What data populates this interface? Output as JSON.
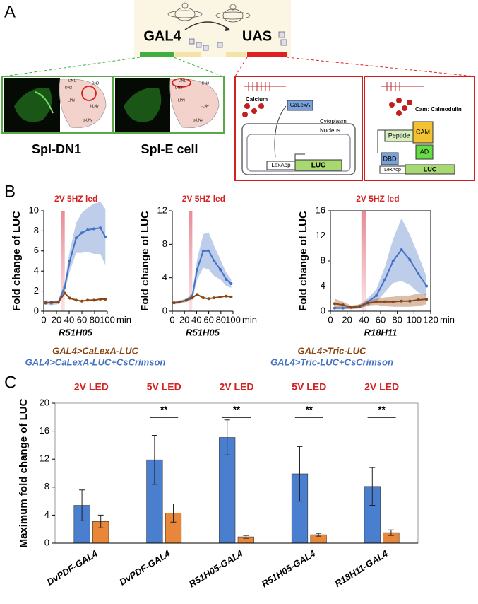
{
  "panel_labels": [
    "A",
    "B",
    "C"
  ],
  "diagram": {
    "gal4": "GAL4",
    "uas": "UAS",
    "images": [
      {
        "label": "Spl-DN1",
        "cells": [
          "DN1",
          "DN2",
          "DN3",
          "LPN",
          "l-LNv",
          "s-LNv"
        ]
      },
      {
        "label": "Spl-E cell",
        "cells": [
          "DN1",
          "DN2",
          "DN3",
          "LPN",
          "l-LNv",
          "s-LNv"
        ]
      }
    ],
    "calexa": {
      "calcium": "Calcium",
      "protein": "CaLexA",
      "cytoplasm": "Cytoplasm",
      "nucleus": "Nucleus",
      "promoter": "LexAop",
      "reporter": "LUC"
    },
    "tric": {
      "note": "Cam: Calmodulin",
      "peptide": "Peptide",
      "cam": "CAM",
      "ad": "AD",
      "dbd": "DBD",
      "promoter": "LexAop",
      "reporter": "LUC"
    }
  },
  "chart_data": [
    {
      "type": "line",
      "annotation": "2V 5HZ led",
      "subtitle": "R51H05",
      "y_label": "Fold change of LUC",
      "x_label": "min",
      "stimulus": [
        27,
        33
      ],
      "x": [
        3,
        12,
        23,
        33,
        41,
        51,
        60,
        69,
        79,
        89,
        97
      ],
      "series": [
        {
          "name": "GAL4>CaLexA-LUC+CsCrimson",
          "color": "#4472c4",
          "values": [
            0.9,
            0.8,
            0.9,
            2.4,
            5.0,
            7.3,
            7.8,
            8.1,
            8.2,
            8.3,
            7.4
          ],
          "errors": [
            0.2,
            0.2,
            0.2,
            0.5,
            1.0,
            1.5,
            2.0,
            2.2,
            2.5,
            2.6,
            2.8
          ]
        },
        {
          "name": "GAL4>CaLexA-LUC",
          "color": "#8b4513",
          "values": [
            0.8,
            0.9,
            0.9,
            1.8,
            1.3,
            1.1,
            1.0,
            1.1,
            1.1,
            1.2,
            1.2
          ]
        }
      ],
      "xlim": [
        0,
        100
      ],
      "xticks": [
        0,
        20,
        40,
        60,
        80,
        100
      ],
      "ylim": [
        0,
        10
      ],
      "yticks": [
        0,
        2,
        4,
        6,
        8,
        10
      ]
    },
    {
      "type": "line",
      "annotation": "2V 5HZ led",
      "subtitle": "R51H05",
      "y_label": "Fold change of LUC",
      "x_label": "min",
      "stimulus": [
        27,
        33
      ],
      "x": [
        3,
        12,
        23,
        33,
        41,
        51,
        60,
        69,
        79,
        89,
        97
      ],
      "series": [
        {
          "color": "#4472c4",
          "values": [
            1.0,
            1.1,
            1.3,
            1.8,
            5.0,
            7.2,
            7.2,
            6.0,
            5.0,
            3.8,
            3.3
          ],
          "errors": [
            0.2,
            0.2,
            0.2,
            0.4,
            1.2,
            2.0,
            2.2,
            1.8,
            1.2,
            0.8,
            0.5
          ]
        },
        {
          "color": "#8b4513",
          "values": [
            1.0,
            1.1,
            1.3,
            1.6,
            2.0,
            1.6,
            1.5,
            1.6,
            1.7,
            1.8,
            1.7
          ]
        }
      ],
      "xlim": [
        0,
        100
      ],
      "xticks": [
        0,
        20,
        40,
        60,
        80,
        100
      ],
      "ylim": [
        0,
        12
      ],
      "yticks": [
        0,
        4,
        8,
        12
      ]
    },
    {
      "type": "line",
      "annotation": "2V 5HZ led",
      "subtitle": "R18H11",
      "y_label": "Fold change of LUC",
      "x_label": "min",
      "stimulus": [
        37,
        43
      ],
      "x": [
        5,
        15,
        25,
        35,
        45,
        55,
        65,
        75,
        85,
        95,
        105,
        115
      ],
      "series": [
        {
          "name": "GAL4>Tric-LUC+CsCrimson",
          "color": "#4472c4",
          "values": [
            0.5,
            0.5,
            0.6,
            0.7,
            1.5,
            2.5,
            5.0,
            8.0,
            9.8,
            8.2,
            6.0,
            4.0
          ],
          "errors": [
            0.2,
            0.2,
            0.2,
            0.3,
            0.6,
            1.0,
            2.0,
            3.5,
            5.0,
            4.0,
            3.0,
            1.5
          ]
        },
        {
          "name": "GAL4>Tric-LUC",
          "color": "#8b4513",
          "values": [
            1.2,
            1.0,
            0.6,
            0.8,
            1.3,
            1.5,
            1.5,
            1.5,
            1.6,
            1.6,
            1.8,
            1.9
          ],
          "errors": [
            0.8,
            0.5,
            0.3,
            0.3,
            0.4,
            0.5,
            0.7,
            0.8,
            0.9,
            0.9,
            1.0,
            0.8
          ]
        }
      ],
      "xlim": [
        0,
        120
      ],
      "xticks": [
        0,
        20,
        40,
        60,
        80,
        100,
        120
      ],
      "ylim": [
        0,
        16
      ],
      "yticks": [
        0,
        4,
        8,
        12,
        16
      ]
    },
    {
      "type": "bar",
      "y_label": "Maximum fold change of LUC",
      "categories": [
        "DvPDF-GAL4",
        "DvPDF-GAL4",
        "R51H05-GAL4",
        "R51H05-GAL4",
        "R18H11-GAL4"
      ],
      "annotations": [
        "2V LED",
        "5V LED",
        "2V LED",
        "5V LED",
        "2V LED"
      ],
      "significance": [
        null,
        "**",
        "**",
        "**",
        "**"
      ],
      "series": [
        {
          "color": "#4a7fd0",
          "values": [
            5.4,
            11.9,
            15.1,
            9.9,
            8.1
          ],
          "errors": [
            2.2,
            3.5,
            2.5,
            3.9,
            2.7
          ]
        },
        {
          "color": "#e8873a",
          "values": [
            3.1,
            4.3,
            0.9,
            1.2,
            1.5
          ],
          "errors": [
            0.9,
            1.3,
            0.2,
            0.2,
            0.4
          ]
        }
      ],
      "ylim": [
        0,
        20
      ],
      "yticks": [
        0,
        4,
        8,
        12,
        16,
        20
      ]
    }
  ]
}
